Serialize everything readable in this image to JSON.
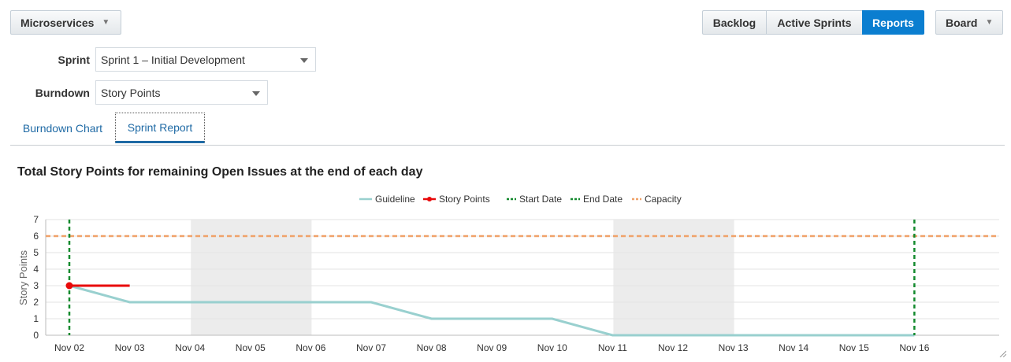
{
  "header": {
    "project_menu": {
      "label": "Microservices",
      "icon": "caret-down-icon"
    },
    "view_switch": [
      {
        "label": "Backlog",
        "active": false
      },
      {
        "label": "Active Sprints",
        "active": false
      },
      {
        "label": "Reports",
        "active": true
      }
    ],
    "board_menu": {
      "label": "Board",
      "icon": "caret-down-icon"
    },
    "accent_color": "#0b7ed0"
  },
  "filters": {
    "sprint": {
      "label": "Sprint",
      "value": "Sprint 1 – Initial Development"
    },
    "burndown": {
      "label": "Burndown",
      "value": "Story Points"
    }
  },
  "tabs": [
    {
      "label": "Burndown Chart",
      "active": false
    },
    {
      "label": "Sprint Report",
      "active": true
    }
  ],
  "chart_data": {
    "type": "line",
    "title": "Total Story Points for remaining Open Issues at the end of each day",
    "xlabel": "",
    "ylabel": "Story Points",
    "categories": [
      "Nov 02",
      "Nov 03",
      "Nov 04",
      "Nov 05",
      "Nov 06",
      "Nov 07",
      "Nov 08",
      "Nov 09",
      "Nov 10",
      "Nov 11",
      "Nov 12",
      "Nov 13",
      "Nov 14",
      "Nov 15",
      "Nov 16"
    ],
    "ylim": [
      0,
      7
    ],
    "yticks": [
      0,
      1,
      2,
      3,
      4,
      5,
      6,
      7
    ],
    "grid": true,
    "legend_position": "top-center",
    "series": [
      {
        "name": "Guideline",
        "color": "#99d0cf",
        "style": "solid",
        "points": [
          [
            "Nov 02",
            3
          ],
          [
            "Nov 03",
            2
          ],
          [
            "Nov 07",
            2
          ],
          [
            "Nov 08",
            1
          ],
          [
            "Nov 10",
            1
          ],
          [
            "Nov 11",
            0
          ],
          [
            "Nov 16",
            0
          ]
        ]
      },
      {
        "name": "Story Points",
        "color": "#e8090a",
        "style": "solid-with-marker",
        "points": [
          [
            "Nov 02",
            3
          ],
          [
            "Nov 03",
            3
          ]
        ]
      },
      {
        "name": "Start Date",
        "color": "#138a2e",
        "style": "dashed-vertical",
        "x": "Nov 02"
      },
      {
        "name": "End Date",
        "color": "#138a2e",
        "style": "dashed-vertical",
        "x": "Nov 16"
      },
      {
        "name": "Capacity",
        "color": "#f0a26a",
        "style": "dashed-horizontal",
        "y": 6
      }
    ],
    "shaded_ranges": [
      [
        "Nov 04",
        "Nov 06"
      ],
      [
        "Nov 11",
        "Nov 13"
      ]
    ]
  }
}
